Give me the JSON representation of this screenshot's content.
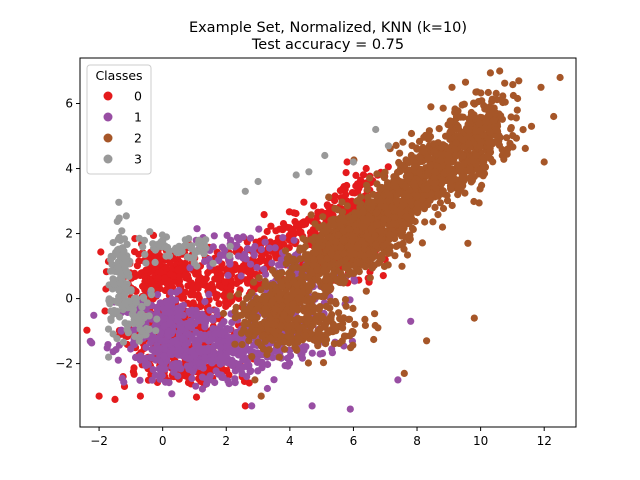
{
  "chart_data": {
    "type": "scatter",
    "title": "Example Set, Normalized, KNN (k=10)",
    "subtitle": "Test accuracy = 0.75",
    "xlabel": "",
    "ylabel": "",
    "xlim": [
      -2.6,
      13.0
    ],
    "ylim": [
      -3.95,
      7.4
    ],
    "x_ticks": [
      -2,
      0,
      2,
      4,
      6,
      8,
      10,
      12
    ],
    "y_ticks": [
      -2,
      0,
      2,
      4,
      6
    ],
    "grid": false,
    "legend": {
      "title": "Classes",
      "position": "top-left",
      "entries": [
        "0",
        "1",
        "2",
        "3"
      ]
    },
    "series": [
      {
        "name": "0",
        "color": "#e41a1c",
        "regions": [
          {
            "type": "blob",
            "cx": 0.3,
            "cy": -0.9,
            "rx": 1.5,
            "ry": 1.0,
            "n": 260
          },
          {
            "type": "blob",
            "cx": 0.0,
            "cy": 0.8,
            "rx": 1.3,
            "ry": 0.7,
            "n": 220
          },
          {
            "type": "blob",
            "cx": 2.0,
            "cy": 0.5,
            "rx": 1.3,
            "ry": 0.9,
            "n": 130
          },
          {
            "type": "band",
            "x0": 2.5,
            "y0": 1.0,
            "x1": 6.8,
            "y1": 3.6,
            "w": 0.55,
            "n": 200
          },
          {
            "type": "blob",
            "cx": 1.0,
            "cy": -2.1,
            "rx": 1.6,
            "ry": 0.5,
            "n": 120
          },
          {
            "type": "blob",
            "cx": 5.5,
            "cy": 1.2,
            "rx": 1.2,
            "ry": 0.9,
            "n": 80
          }
        ],
        "points": [
          [
            -2.0,
            -3.0
          ],
          [
            -1.5,
            -3.1
          ],
          [
            -0.7,
            -3.0
          ],
          [
            2.6,
            -3.3
          ],
          [
            5.8,
            4.2
          ],
          [
            6.4,
            4.0
          ],
          [
            7.6,
            2.9
          ],
          [
            7.0,
            1.2
          ],
          [
            -1.2,
            -2.7
          ]
        ]
      },
      {
        "name": "1",
        "color": "#984ea3",
        "regions": [
          {
            "type": "blob",
            "cx": 1.2,
            "cy": -1.7,
            "rx": 2.1,
            "ry": 0.8,
            "n": 380
          },
          {
            "type": "blob",
            "cx": 0.2,
            "cy": -0.6,
            "rx": 1.4,
            "ry": 0.6,
            "n": 160
          },
          {
            "type": "blob",
            "cx": 3.8,
            "cy": -1.2,
            "rx": 1.6,
            "ry": 0.8,
            "n": 140
          },
          {
            "type": "blob",
            "cx": 4.2,
            "cy": 0.6,
            "rx": 1.6,
            "ry": 0.9,
            "n": 90
          },
          {
            "type": "blob",
            "cx": 2.0,
            "cy": 1.5,
            "rx": 1.5,
            "ry": 0.5,
            "n": 50
          }
        ],
        "points": [
          [
            4.7,
            -3.3
          ],
          [
            5.9,
            -3.4
          ],
          [
            2.8,
            -3.3
          ],
          [
            7.4,
            -2.5
          ],
          [
            7.8,
            -0.7
          ]
        ]
      },
      {
        "name": "2",
        "color": "#a65628",
        "regions": [
          {
            "type": "band",
            "x0": 2.8,
            "y0": -0.9,
            "x1": 10.6,
            "y1": 5.8,
            "w": 0.85,
            "n": 1300
          },
          {
            "type": "band",
            "x0": 6.0,
            "y0": 1.6,
            "x1": 10.4,
            "y1": 5.0,
            "w": 0.75,
            "n": 500
          },
          {
            "type": "blob",
            "cx": 4.5,
            "cy": -0.8,
            "rx": 1.6,
            "ry": 0.7,
            "n": 200
          },
          {
            "type": "blob",
            "cx": 6.0,
            "cy": 1.6,
            "rx": 1.2,
            "ry": 0.8,
            "n": 180
          }
        ],
        "points": [
          [
            12.5,
            6.8
          ],
          [
            12.3,
            5.6
          ],
          [
            11.9,
            6.5
          ],
          [
            10.6,
            7.0
          ],
          [
            11.2,
            6.7
          ],
          [
            9.1,
            6.5
          ],
          [
            11.6,
            5.3
          ],
          [
            12.0,
            4.2
          ],
          [
            9.8,
            -0.6
          ],
          [
            8.3,
            -1.3
          ],
          [
            7.6,
            -2.3
          ],
          [
            3.1,
            -3.0
          ],
          [
            2.9,
            -2.5
          ],
          [
            8.8,
            2.2
          ],
          [
            9.6,
            1.7
          ]
        ]
      },
      {
        "name": "3",
        "color": "#999999",
        "regions": [
          {
            "type": "blob",
            "cx": -1.3,
            "cy": 0.6,
            "rx": 0.35,
            "ry": 1.3,
            "n": 120
          },
          {
            "type": "blob",
            "cx": 0.5,
            "cy": 1.5,
            "rx": 1.3,
            "ry": 0.5,
            "n": 60
          },
          {
            "type": "blob",
            "cx": -0.8,
            "cy": -0.5,
            "rx": 0.6,
            "ry": 0.7,
            "n": 50
          }
        ],
        "points": [
          [
            6.7,
            5.2
          ],
          [
            6.0,
            4.2
          ],
          [
            7.1,
            4.7
          ],
          [
            4.2,
            3.8
          ],
          [
            3.0,
            3.6
          ],
          [
            5.1,
            4.4
          ],
          [
            2.6,
            3.3
          ],
          [
            4.6,
            3.9
          ],
          [
            -1.7,
            -1.8
          ]
        ]
      }
    ]
  }
}
